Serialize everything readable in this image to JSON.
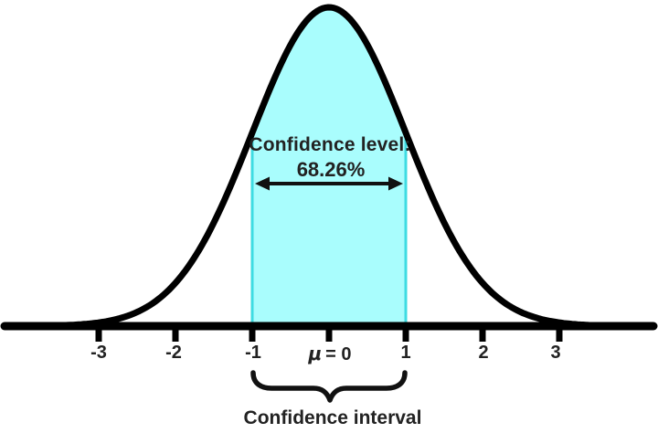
{
  "colors": {
    "shade_fill": "#A9FDFD",
    "shade_border": "#3EDCE2",
    "curve": "#000000",
    "axis": "#000000",
    "arrow": "#111111",
    "brace": "#111111",
    "text": "#222222"
  },
  "annotation": {
    "line1": "Confidence level:",
    "line2": "68.26%"
  },
  "axis": {
    "ticks": [
      {
        "label": "-3"
      },
      {
        "label": "-2"
      },
      {
        "label": "-1"
      },
      {
        "symbol": "μ",
        "rest": "= 0"
      },
      {
        "label": "1"
      },
      {
        "label": "2"
      },
      {
        "label": "3"
      }
    ]
  },
  "brace": {
    "label": "Confidence interval"
  },
  "chart_data": {
    "type": "area",
    "title": "",
    "distribution": "normal",
    "mean": 0,
    "std_dev": 1,
    "x_ticks": [
      -3,
      -2,
      -1,
      0,
      1,
      2,
      3
    ],
    "x_tick_labels": [
      "-3",
      "-2",
      "-1",
      "μ = 0",
      "1",
      "2",
      "3"
    ],
    "shaded_interval": [
      -1,
      1
    ],
    "confidence_level_percent": 68.26,
    "confidence_level_label": "Confidence level: 68.26%",
    "interval_label": "Confidence interval",
    "xlabel": "",
    "ylabel": "",
    "grid": false,
    "legend": "none"
  }
}
